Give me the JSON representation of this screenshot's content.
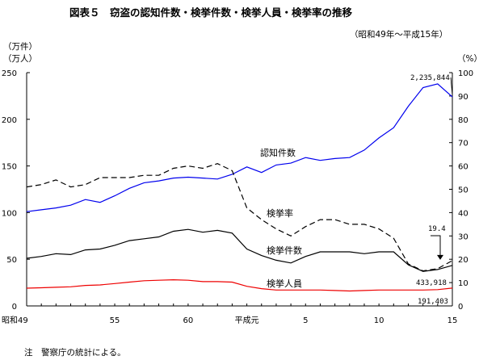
{
  "chart_data": {
    "type": "line",
    "title": "図表５　窃盗の認知件数・検挙件数・検挙人員・検挙率の推移",
    "subtitle": "（昭和49年～平成15年）",
    "y_left_label_line1": "（万件）",
    "y_left_label_line2": "（万人）",
    "y_right_label": "（%）",
    "ylim_left": [
      0,
      250
    ],
    "ylim_right": [
      0,
      100
    ],
    "yticks_left": [
      "0",
      "50",
      "100",
      "150",
      "200",
      "250"
    ],
    "yticks_right": [
      "0",
      "10",
      "20",
      "30",
      "40",
      "50",
      "60",
      "70",
      "80",
      "90",
      "100"
    ],
    "x_tick_labels": [
      "昭和49",
      "55",
      "60",
      "平成元",
      "5",
      "10",
      "15"
    ],
    "x": [
      1974,
      1975,
      1976,
      1977,
      1978,
      1979,
      1980,
      1981,
      1982,
      1983,
      1984,
      1985,
      1986,
      1987,
      1988,
      1989,
      1990,
      1991,
      1992,
      1993,
      1994,
      1995,
      1996,
      1997,
      1998,
      1999,
      2000,
      2001,
      2002,
      2003
    ],
    "series": [
      {
        "name": "認知件数",
        "axis": "left",
        "color": "#0000ee",
        "dash": "",
        "values": [
          101,
          103,
          105,
          108,
          114,
          111,
          118,
          126,
          132,
          134,
          137,
          138,
          137,
          136,
          141,
          149,
          143,
          151,
          153,
          159,
          156,
          158,
          159,
          167,
          180,
          191,
          214,
          234,
          238,
          224
        ]
      },
      {
        "name": "検挙率",
        "axis": "right",
        "color": "#000000",
        "dash": "7,4",
        "values": [
          51,
          52,
          54,
          51,
          52,
          55,
          55,
          55,
          56,
          56,
          59,
          60,
          59,
          61,
          58,
          42,
          37,
          33,
          30,
          34,
          37,
          37,
          35,
          35,
          33,
          29,
          18,
          15,
          16,
          19.4
        ]
      },
      {
        "name": "検挙件数",
        "axis": "left",
        "color": "#000000",
        "dash": "",
        "values": [
          51,
          53,
          56,
          55,
          60,
          61,
          65,
          70,
          72,
          74,
          80,
          82,
          79,
          81,
          78,
          61,
          54,
          49,
          46,
          53,
          58,
          58,
          58,
          56,
          58,
          58,
          44,
          37,
          39,
          43.4
        ]
      },
      {
        "name": "検挙人員",
        "axis": "left",
        "color": "#ee0000",
        "dash": "",
        "values": [
          19,
          19.5,
          20,
          20.5,
          22,
          22.5,
          24,
          25.5,
          27,
          27.5,
          28,
          27.5,
          26,
          26,
          25.5,
          21,
          18.5,
          17,
          17,
          17,
          17,
          16.5,
          16,
          16.5,
          17,
          17,
          17,
          17,
          17.5,
          19.1
        ]
      }
    ],
    "annotations": [
      {
        "text": "2,235,844"
      },
      {
        "text": "19.4"
      },
      {
        "text": "433,918"
      },
      {
        "text": "191,403"
      }
    ],
    "note": "注　警察庁の統計による。",
    "grid": false
  }
}
